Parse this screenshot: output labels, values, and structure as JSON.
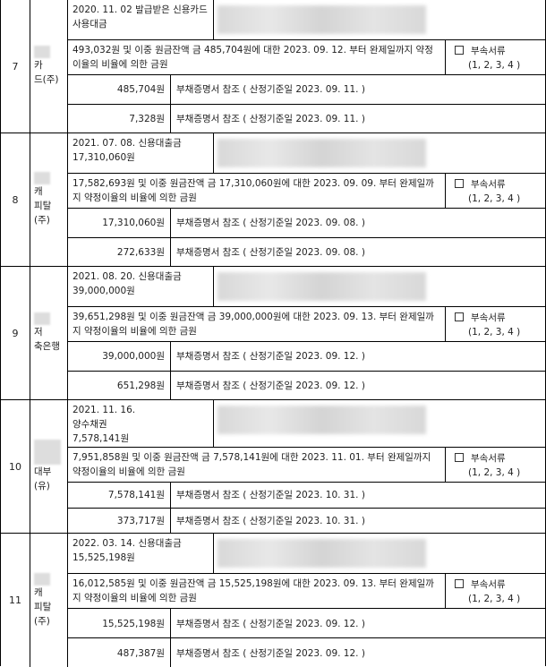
{
  "attachment_label": "부속서류",
  "attachment_nums": "(1, 2, 3, 4 )",
  "rows": [
    {
      "no": "7",
      "name": "카\n드(주)",
      "origin": "2020. 11. 02 발급받은 신용카드\n사용대금",
      "desc": "493,032원 및 이중 원금잔액 금 485,704원에 대한 2023. 09. 12. 부터 완제일까지 약정\n이율의 비율에 의한 금원",
      "amounts": [
        {
          "value": "485,704원",
          "note": "부채증명서 참조 ( 산정기준일 2023. 09. 11. )"
        },
        {
          "value": "7,328원",
          "note": "부채증명서 참조 ( 산정기준일 2023. 09. 11. )"
        }
      ]
    },
    {
      "no": "8",
      "name": "캐\n피탈\n(주)",
      "origin": "2021. 07. 08. 신용대출금\n17,310,060원",
      "desc": "17,582,693원 및 이중 원금잔액 금 17,310,060원에 대한 2023. 09. 09. 부터 완제일까\n지 약정이율의 비율에 의한 금원",
      "amounts": [
        {
          "value": "17,310,060원",
          "note": "부채증명서 참조 ( 산정기준일 2023. 09. 08. )"
        },
        {
          "value": "272,633원",
          "note": "부채증명서 참조 ( 산정기준일 2023. 09. 08. )"
        }
      ]
    },
    {
      "no": "9",
      "name": "저\n축은행",
      "origin": "2021. 08. 20. 신용대출금\n39,000,000원",
      "desc": "39,651,298원 및 이중 원금잔액 금 39,000,000원에 대한 2023. 09. 13. 부터 완제일까\n지 약정이율의 비율에 의한 금원",
      "amounts": [
        {
          "value": "39,000,000원",
          "note": "부채증명서 참조 ( 산정기준일 2023. 09. 12. )"
        },
        {
          "value": "651,298원",
          "note": "부채증명서 참조 ( 산정기준일 2023. 09. 12. )"
        }
      ]
    },
    {
      "no": "10",
      "name": "대부\n(유)",
      "origin": "2021. 11. 16.\n양수채권\n7,578,141원",
      "desc": "7,951,858원 및 이중 원금잔액 금 7,578,141원에 대한 2023. 11. 01. 부터 완제일까지\n약정이율의 비율에 의한 금원",
      "amounts": [
        {
          "value": "7,578,141원",
          "note": "부채증명서 참조 ( 산정기준일 2023. 10. 31. )"
        },
        {
          "value": "373,717원",
          "note": "부채증명서 참조 ( 산정기준일 2023. 10. 31. )"
        }
      ]
    },
    {
      "no": "11",
      "name": "캐\n피탈\n(주)",
      "origin": "2022. 03. 14. 신용대출금\n15,525,198원",
      "desc": "16,012,585원 및 이중 원금잔액 금 15,525,198원에 대한 2023. 09. 13. 부터 완제일까\n지 약정이율의 비율에 의한 금원",
      "amounts": [
        {
          "value": "15,525,198원",
          "note": "부채증명서 참조 ( 산정기준일 2023. 09. 12. )"
        },
        {
          "value": "487,387원",
          "note": "부채증명서 참조 ( 산정기준일 2023. 09. 12. )"
        }
      ]
    }
  ]
}
